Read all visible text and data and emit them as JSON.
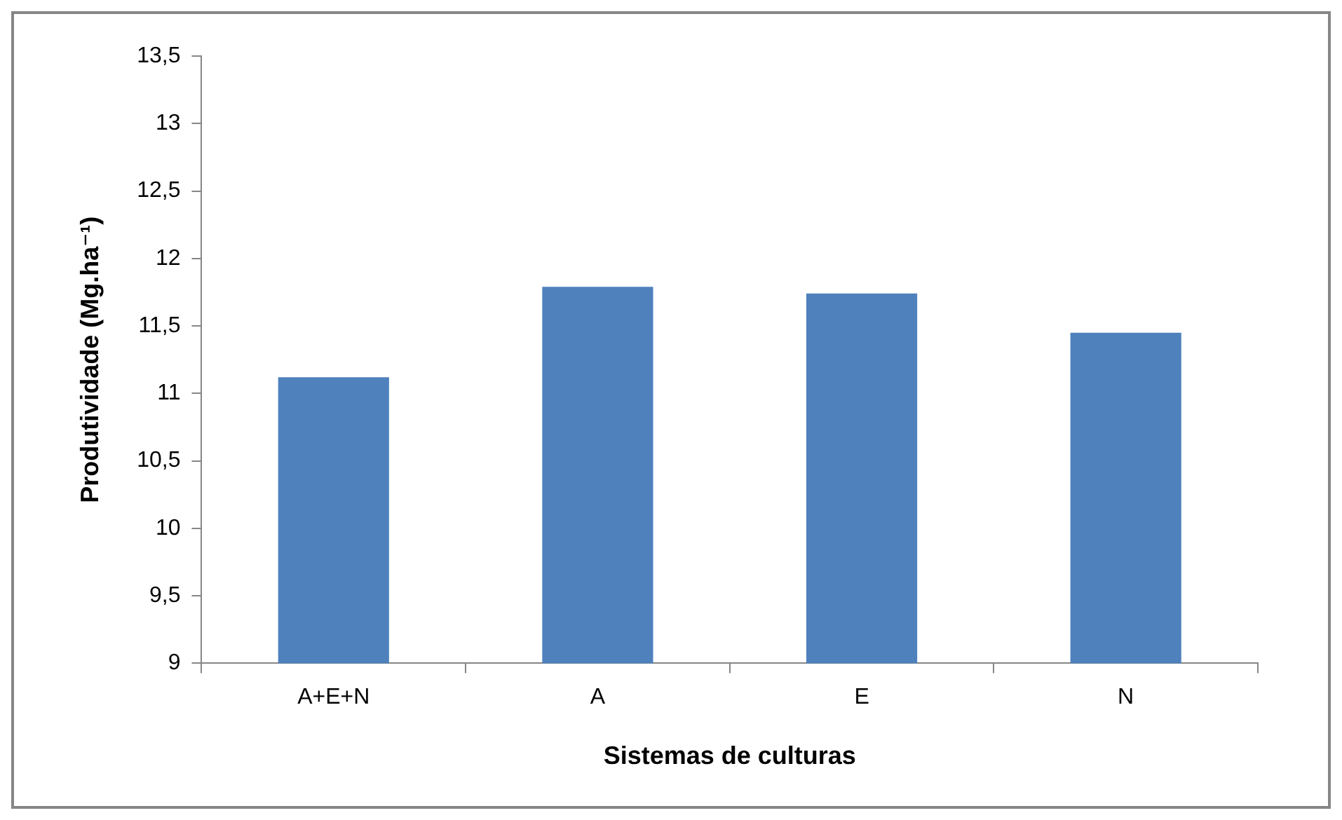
{
  "chart_data": {
    "type": "bar",
    "xlabel": "Sistemas de culturas",
    "ylabel": "Produtividade (Mg.ha⁻¹)",
    "categories": [
      "A+E+N",
      "A",
      "E",
      "N"
    ],
    "values": [
      11.12,
      11.79,
      11.74,
      11.45
    ],
    "color": "#4f81bd",
    "ylim": [
      9,
      13.5
    ],
    "yticks": [
      9,
      {
        "value": 9.5,
        "label": "9,5"
      },
      10,
      {
        "value": 10.5,
        "label": "10,5"
      },
      11,
      {
        "value": 11.5,
        "label": "11,5"
      },
      12,
      {
        "value": 12.5,
        "label": "12,5"
      },
      13,
      {
        "value": 13.5,
        "label": "13,5"
      }
    ],
    "grid": false,
    "legend": false
  }
}
